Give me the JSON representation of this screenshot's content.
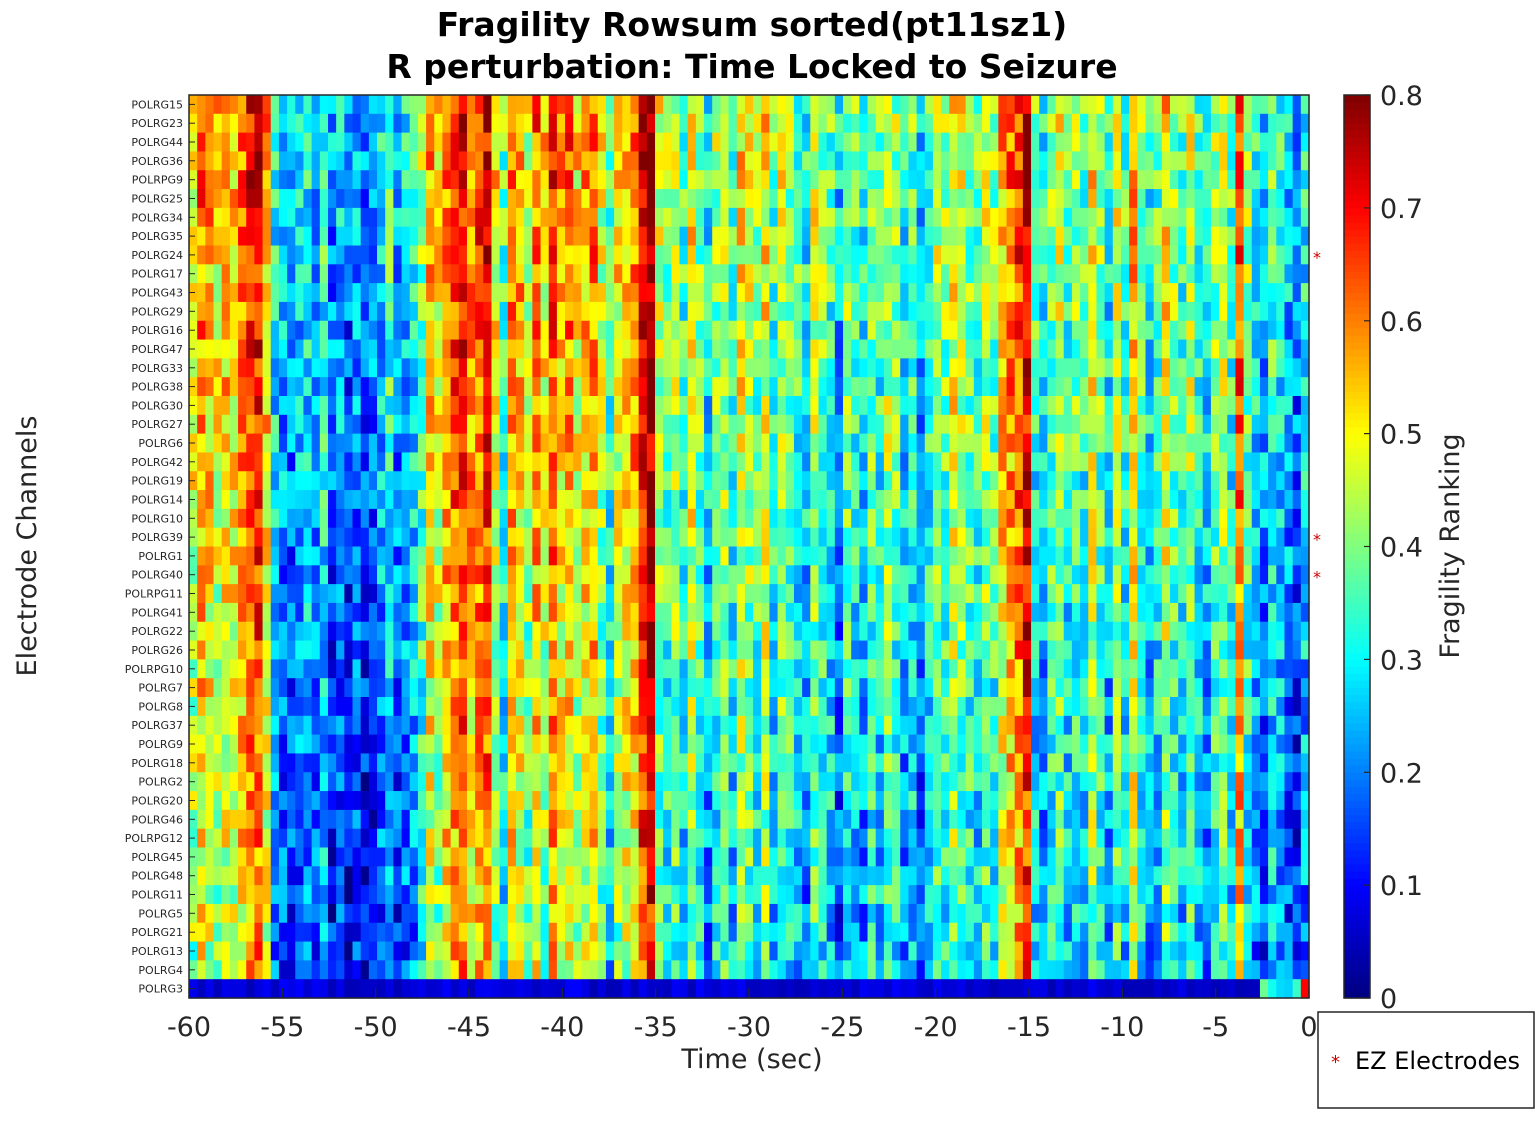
{
  "chart_data": {
    "type": "heatmap",
    "title_line1": "Fragility Rowsum sorted(pt11sz1)",
    "title_line2": "R perturbation:  Time Locked to Seizure",
    "xlabel": "Time (sec)",
    "ylabel": "Electrode Channels",
    "xlim": [
      -60,
      0
    ],
    "xticks": [
      "-60",
      "-55",
      "-50",
      "-45",
      "-40",
      "-35",
      "-30",
      "-25",
      "-20",
      "-15",
      "-10",
      "-5",
      "0"
    ],
    "colorbar_label": "Fragility Ranking",
    "colorbar_range": [
      0,
      0.8
    ],
    "colorbar_ticks": [
      "0",
      "0.1",
      "0.2",
      "0.3",
      "0.4",
      "0.5",
      "0.6",
      "0.7",
      "0.8"
    ],
    "colormap": "jet",
    "channels": [
      "POLRG15",
      "POLRG23",
      "POLRG44",
      "POLRG36",
      "POLRPG9",
      "POLRG25",
      "POLRG34",
      "POLRG35",
      "POLRG24",
      "POLRG17",
      "POLRG43",
      "POLRG29",
      "POLRG16",
      "POLRG47",
      "POLRG33",
      "POLRG38",
      "POLRG30",
      "POLRG27",
      "POLRG6",
      "POLRG42",
      "POLRG19",
      "POLRG14",
      "POLRG10",
      "POLRG39",
      "POLRG1",
      "POLRG40",
      "POLRPG11",
      "POLRG41",
      "POLRG22",
      "POLRG26",
      "POLRPG10",
      "POLRG7",
      "POLRG8",
      "POLRG37",
      "POLRG9",
      "POLRG18",
      "POLRG2",
      "POLRG20",
      "POLRG46",
      "POLRPG12",
      "POLRG45",
      "POLRG48",
      "POLRG11",
      "POLRG5",
      "POLRG21",
      "POLRG13",
      "POLRG4",
      "POLRG3"
    ],
    "ez_electrodes": [
      "POLRG24",
      "POLRG39",
      "POLRG40"
    ],
    "ez_color": "#ff0000",
    "time_column_means": [
      0.45,
      0.55,
      0.5,
      0.45,
      0.5,
      0.48,
      0.55,
      0.62,
      0.65,
      0.5,
      0.25,
      0.2,
      0.18,
      0.22,
      0.25,
      0.2,
      0.28,
      0.15,
      0.2,
      0.12,
      0.18,
      0.12,
      0.15,
      0.22,
      0.3,
      0.18,
      0.22,
      0.25,
      0.35,
      0.5,
      0.45,
      0.55,
      0.6,
      0.65,
      0.55,
      0.6,
      0.65,
      0.45,
      0.3,
      0.55,
      0.5,
      0.4,
      0.55,
      0.45,
      0.6,
      0.5,
      0.55,
      0.45,
      0.5,
      0.55,
      0.4,
      0.3,
      0.45,
      0.5,
      0.55,
      0.7,
      0.75,
      0.4,
      0.35,
      0.4,
      0.3,
      0.45,
      0.35,
      0.25,
      0.35,
      0.4,
      0.3,
      0.45,
      0.4,
      0.35,
      0.45,
      0.3,
      0.4,
      0.35,
      0.3,
      0.25,
      0.4,
      0.35,
      0.3,
      0.2,
      0.35,
      0.3,
      0.25,
      0.35,
      0.3,
      0.4,
      0.35,
      0.25,
      0.3,
      0.2,
      0.3,
      0.4,
      0.35,
      0.45,
      0.4,
      0.35,
      0.3,
      0.4,
      0.35,
      0.5,
      0.55,
      0.6,
      0.7,
      0.3,
      0.25,
      0.35,
      0.4,
      0.3,
      0.35,
      0.3,
      0.45,
      0.35,
      0.25,
      0.4,
      0.3,
      0.5,
      0.35,
      0.25,
      0.3,
      0.45,
      0.35,
      0.3,
      0.4,
      0.3,
      0.25,
      0.35,
      0.4,
      0.3,
      0.6,
      0.35,
      0.25,
      0.2,
      0.3,
      0.25,
      0.2,
      0.15,
      0.25
    ],
    "last_row_values_note_free": [
      0.05
    ],
    "legend": {
      "marker": "*",
      "label": "EZ Electrodes"
    }
  }
}
